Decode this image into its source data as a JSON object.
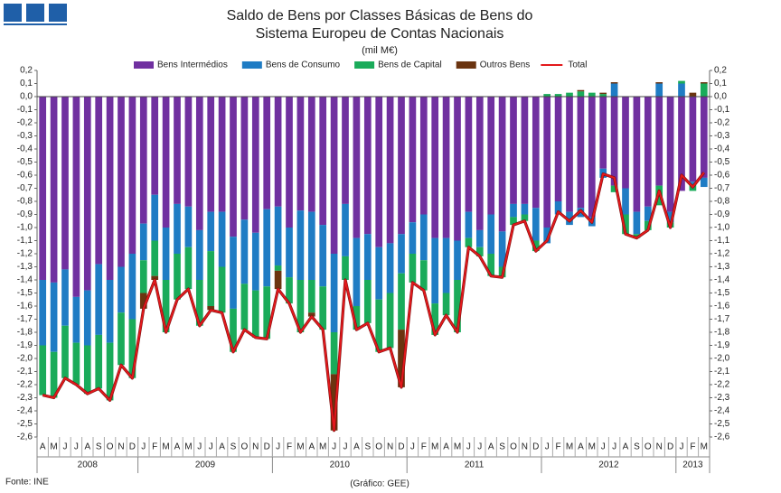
{
  "chart_data": {
    "type": "bar",
    "stacked": true,
    "title": [
      "Saldo de Bens por Classes Básicas de Bens do",
      "Sistema Europeu de Contas Nacionais"
    ],
    "subtitle": "(mil M€)",
    "source": "Fonte: INE",
    "credit": "(Gráfico:  GEE)",
    "categories": [
      "A",
      "M",
      "J",
      "J",
      "A",
      "S",
      "O",
      "N",
      "D",
      "J",
      "F",
      "M",
      "A",
      "M",
      "J",
      "J",
      "A",
      "S",
      "O",
      "N",
      "D",
      "J",
      "F",
      "M",
      "A",
      "M",
      "J",
      "J",
      "A",
      "S",
      "O",
      "N",
      "D",
      "J",
      "F",
      "M",
      "A",
      "M",
      "J",
      "J",
      "A",
      "S",
      "O",
      "N",
      "D",
      "J",
      "F",
      "M",
      "A",
      "M",
      "J",
      "J",
      "A",
      "S",
      "O",
      "N",
      "D",
      "J",
      "F",
      "M"
    ],
    "years": [
      "2008",
      "2009",
      "2010",
      "2011",
      "2012",
      "2013"
    ],
    "series": [
      {
        "name": "Bens Intermédios",
        "type": "bar",
        "color": "#7030a0",
        "values": [
          -1.4,
          -1.42,
          -1.32,
          -1.53,
          -1.48,
          -1.28,
          -1.4,
          -1.3,
          -1.2,
          -0.97,
          -0.75,
          -1.0,
          -0.82,
          -0.84,
          -1.02,
          -0.88,
          -0.88,
          -1.07,
          -0.94,
          -1.04,
          -0.86,
          -0.84,
          -1.0,
          -0.87,
          -0.88,
          -0.98,
          -1.2,
          -0.82,
          -1.08,
          -1.05,
          -1.15,
          -1.12,
          -1.05,
          -0.96,
          -0.9,
          -1.08,
          -1.08,
          -1.1,
          -0.88,
          -1.02,
          -0.9,
          -1.03,
          -0.82,
          -0.82,
          -0.85,
          -1.0,
          -0.8,
          -0.88,
          -0.85,
          -0.92,
          -0.55,
          -0.68,
          -0.7,
          -0.88,
          -0.84,
          -0.68,
          -0.88,
          -0.72,
          -0.65,
          -0.62
        ]
      },
      {
        "name": "Bens de Consumo",
        "type": "bar",
        "color": "#1f7cc4",
        "values": [
          -0.5,
          -0.53,
          -0.43,
          -0.35,
          -0.42,
          -0.54,
          -0.48,
          -0.35,
          -0.5,
          -0.28,
          -0.35,
          -0.4,
          -0.38,
          -0.31,
          -0.38,
          -0.3,
          -0.42,
          -0.55,
          -0.49,
          -0.44,
          -0.59,
          -0.45,
          -0.38,
          -0.53,
          -0.52,
          -0.47,
          -0.6,
          -0.4,
          -0.52,
          -0.35,
          -0.4,
          -0.38,
          -0.3,
          -0.24,
          -0.35,
          -0.5,
          -0.42,
          -0.3,
          -0.2,
          -0.13,
          -0.3,
          -0.27,
          -0.1,
          -0.08,
          -0.25,
          -0.12,
          -0.1,
          -0.1,
          -0.07,
          -0.07,
          -0.07,
          0.1,
          -0.2,
          -0.17,
          -0.11,
          0.1,
          -0.08,
          0.1,
          -0.02,
          -0.07
        ]
      },
      {
        "name": "Bens de Capital",
        "type": "bar",
        "color": "#1aab5a",
        "values": [
          -0.38,
          -0.35,
          -0.4,
          -0.32,
          -0.37,
          -0.41,
          -0.44,
          -0.4,
          -0.45,
          -0.25,
          -0.27,
          -0.4,
          -0.35,
          -0.32,
          -0.35,
          -0.42,
          -0.35,
          -0.33,
          -0.35,
          -0.36,
          -0.4,
          -0.04,
          -0.2,
          -0.4,
          -0.25,
          -0.33,
          -0.32,
          -0.18,
          -0.18,
          -0.33,
          -0.4,
          -0.42,
          -0.43,
          -0.22,
          -0.23,
          -0.24,
          -0.17,
          -0.4,
          -0.07,
          -0.07,
          -0.17,
          -0.08,
          -0.06,
          -0.05,
          -0.08,
          0.02,
          0.02,
          0.03,
          0.04,
          0.03,
          0.02,
          -0.05,
          -0.15,
          -0.03,
          -0.07,
          -0.15,
          -0.04,
          0.02,
          -0.05,
          0.1
        ]
      },
      {
        "name": "Outros Bens",
        "type": "bar",
        "color": "#6b3410",
        "values": [
          0,
          0,
          0,
          0,
          0,
          0,
          0,
          0,
          0,
          -0.12,
          -0.03,
          0,
          0,
          0,
          0,
          -0.03,
          0,
          0,
          0,
          0,
          0,
          -0.14,
          0,
          0,
          -0.03,
          0,
          -0.43,
          0,
          0,
          0,
          0,
          0,
          -0.44,
          0,
          0,
          0,
          0,
          0,
          0,
          0,
          0,
          0,
          0,
          0,
          0,
          0,
          0,
          0,
          0.01,
          0,
          0.01,
          0.01,
          0,
          0,
          0,
          0.01,
          0,
          0,
          0.03,
          0.01
        ]
      },
      {
        "name": "Total",
        "type": "line",
        "color": "#e3191c",
        "values": [
          -2.28,
          -2.3,
          -2.15,
          -2.2,
          -2.27,
          -2.23,
          -2.32,
          -2.05,
          -2.15,
          -1.62,
          -1.4,
          -1.8,
          -1.55,
          -1.47,
          -1.75,
          -1.63,
          -1.65,
          -1.95,
          -1.78,
          -1.84,
          -1.85,
          -1.47,
          -1.58,
          -1.8,
          -1.68,
          -1.78,
          -2.55,
          -1.4,
          -1.78,
          -1.73,
          -1.95,
          -1.92,
          -2.22,
          -1.42,
          -1.48,
          -1.82,
          -1.67,
          -1.8,
          -1.15,
          -1.22,
          -1.37,
          -1.38,
          -0.98,
          -0.95,
          -1.18,
          -1.1,
          -0.88,
          -0.95,
          -0.87,
          -0.96,
          -0.59,
          -0.62,
          -1.05,
          -1.08,
          -1.02,
          -0.72,
          -1.0,
          -0.6,
          -0.69,
          -0.58
        ]
      }
    ],
    "ylim": [
      -2.6,
      0.2
    ],
    "yticks": [
      {
        "value": 0.2,
        "label": "0,2"
      },
      {
        "value": 0.1,
        "label": "0,1"
      },
      {
        "value": 0,
        "label": "0,0"
      },
      {
        "value": -0.1,
        "label": "-0,1"
      },
      {
        "value": -0.2,
        "label": "-0,2"
      },
      {
        "value": -0.3,
        "label": "-0,3"
      },
      {
        "value": -0.4,
        "label": "-0,4"
      },
      {
        "value": -0.5,
        "label": "-0,5"
      },
      {
        "value": -0.6,
        "label": "-0,6"
      },
      {
        "value": -0.7,
        "label": "-0,7"
      },
      {
        "value": -0.8,
        "label": "-0,8"
      },
      {
        "value": -0.9,
        "label": "-0,9"
      },
      {
        "value": -1.0,
        "label": "-1,0"
      },
      {
        "value": -1.1,
        "label": "-1,1"
      },
      {
        "value": -1.2,
        "label": "-1,2"
      },
      {
        "value": -1.3,
        "label": "-1,3"
      },
      {
        "value": -1.4,
        "label": "-1,4"
      },
      {
        "value": -1.5,
        "label": "-1,5"
      },
      {
        "value": -1.6,
        "label": "-1,6"
      },
      {
        "value": -1.7,
        "label": "-1,7"
      },
      {
        "value": -1.8,
        "label": "-1,8"
      },
      {
        "value": -1.9,
        "label": "-1,9"
      },
      {
        "value": -2.0,
        "label": "-2,0"
      },
      {
        "value": -2.1,
        "label": "-2,1"
      },
      {
        "value": -2.2,
        "label": "-2,2"
      },
      {
        "value": -2.3,
        "label": "-2,3"
      },
      {
        "value": -2.4,
        "label": "-2,4"
      },
      {
        "value": -2.5,
        "label": "-2,5"
      },
      {
        "value": -2.6,
        "label": "-2,6"
      }
    ],
    "grid": false,
    "legend": "top"
  }
}
